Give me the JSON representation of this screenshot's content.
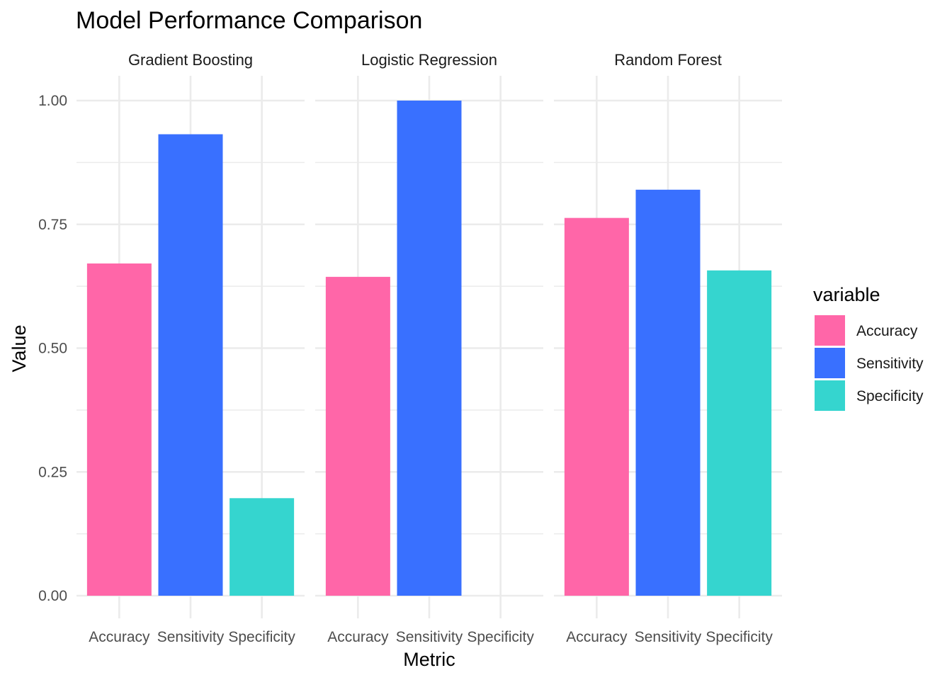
{
  "chart_data": {
    "type": "bar",
    "title": "Model Performance Comparison",
    "xlabel": "Metric",
    "ylabel": "Value",
    "ylim": [
      0,
      1.05
    ],
    "yticks": [
      0.0,
      0.25,
      0.5,
      0.75,
      1.0
    ],
    "ytick_labels": [
      "0.00",
      "0.25",
      "0.50",
      "0.75",
      "1.00"
    ],
    "categories": [
      "Accuracy",
      "Sensitivity",
      "Specificity"
    ],
    "legend": {
      "title": "variable",
      "position": "right",
      "items": [
        {
          "label": "Accuracy",
          "color": "#FF66A8"
        },
        {
          "label": "Sensitivity",
          "color": "#3970FF"
        },
        {
          "label": "Specificity",
          "color": "#35D5CF"
        }
      ]
    },
    "facets": [
      {
        "name": "Gradient Boosting",
        "values": [
          0.671,
          0.932,
          0.197
        ]
      },
      {
        "name": "Logistic Regression",
        "values": [
          0.644,
          1.0,
          0.0
        ]
      },
      {
        "name": "Random Forest",
        "values": [
          0.763,
          0.82,
          0.657
        ]
      }
    ],
    "grid": true
  }
}
